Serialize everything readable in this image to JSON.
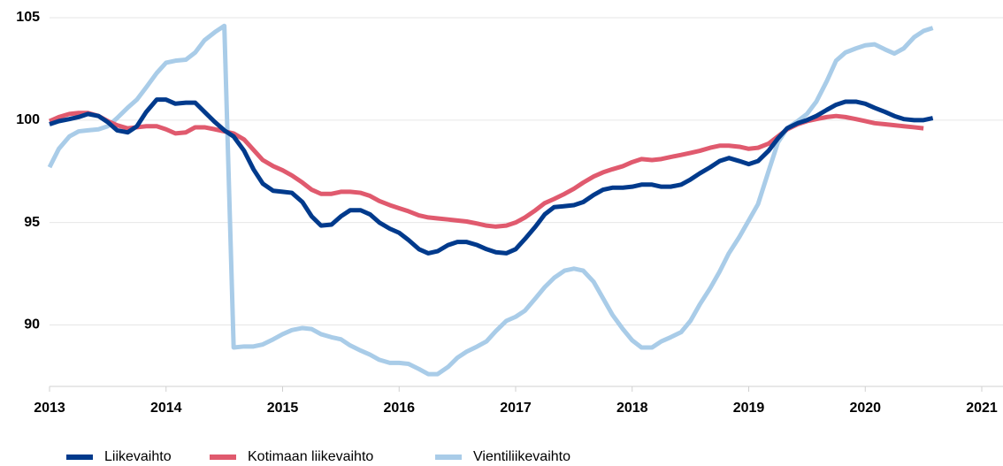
{
  "chart_data": {
    "type": "line",
    "x": [
      2013,
      2013.08,
      2013.17,
      2013.25,
      2013.33,
      2013.42,
      2013.5,
      2013.58,
      2013.67,
      2013.75,
      2013.83,
      2013.92,
      2014,
      2014.08,
      2014.17,
      2014.25,
      2014.33,
      2014.42,
      2014.5,
      2014.58,
      2014.67,
      2014.75,
      2014.83,
      2014.92,
      2015,
      2015.08,
      2015.17,
      2015.25,
      2015.33,
      2015.42,
      2015.5,
      2015.58,
      2015.67,
      2015.75,
      2015.83,
      2015.92,
      2016,
      2016.08,
      2016.17,
      2016.25,
      2016.33,
      2016.42,
      2016.5,
      2016.58,
      2016.67,
      2016.75,
      2016.83,
      2016.92,
      2017,
      2017.08,
      2017.17,
      2017.25,
      2017.33,
      2017.42,
      2017.5,
      2017.58,
      2017.67,
      2017.75,
      2017.83,
      2017.92,
      2018,
      2018.08,
      2018.17,
      2018.25,
      2018.33,
      2018.42,
      2018.5,
      2018.58,
      2018.67,
      2018.75,
      2018.83,
      2018.92,
      2019,
      2019.08,
      2019.17,
      2019.25,
      2019.33,
      2019.42,
      2019.5,
      2019.58,
      2019.67,
      2019.75,
      2019.83,
      2019.92,
      2020,
      2020.08,
      2020.17,
      2020.25,
      2020.33,
      2020.42,
      2020.5,
      2020.58
    ],
    "series": [
      {
        "name": "Liikevaihto",
        "color": "#003a8c",
        "values": [
          99.8,
          99.95,
          100.05,
          100.15,
          100.3,
          100.2,
          99.9,
          99.5,
          99.4,
          99.7,
          100.4,
          101.0,
          101.0,
          100.8,
          100.85,
          100.85,
          100.4,
          99.9,
          99.5,
          99.2,
          98.5,
          97.6,
          96.9,
          96.55,
          96.5,
          96.45,
          96.0,
          95.3,
          94.85,
          94.9,
          95.3,
          95.6,
          95.6,
          95.4,
          95.0,
          94.7,
          94.5,
          94.15,
          93.7,
          93.5,
          93.6,
          93.9,
          94.05,
          94.05,
          93.9,
          93.7,
          93.55,
          93.5,
          93.7,
          94.2,
          94.8,
          95.4,
          95.75,
          95.8,
          95.85,
          96.0,
          96.35,
          96.6,
          96.7,
          96.7,
          96.75,
          96.85,
          96.85,
          96.75,
          96.75,
          96.85,
          97.1,
          97.4,
          97.7,
          98.0,
          98.15,
          98.0,
          97.85,
          98.0,
          98.5,
          99.1,
          99.6,
          99.85,
          100.0,
          100.2,
          100.5,
          100.75,
          100.9,
          100.9,
          100.8,
          100.6,
          100.4,
          100.2,
          100.05,
          100.0,
          100.0,
          100.1
        ]
      },
      {
        "name": "Kotimaan liikevaihto",
        "color": "#e05a6e",
        "values": [
          99.95,
          100.15,
          100.3,
          100.35,
          100.35,
          100.2,
          99.95,
          99.75,
          99.6,
          99.65,
          99.7,
          99.7,
          99.55,
          99.35,
          99.4,
          99.65,
          99.65,
          99.55,
          99.45,
          99.35,
          99.05,
          98.55,
          98.05,
          97.75,
          97.55,
          97.3,
          96.95,
          96.6,
          96.4,
          96.4,
          96.5,
          96.5,
          96.45,
          96.3,
          96.05,
          95.85,
          95.7,
          95.55,
          95.35,
          95.25,
          95.2,
          95.15,
          95.1,
          95.05,
          94.95,
          94.85,
          94.8,
          94.85,
          95.0,
          95.25,
          95.6,
          95.95,
          96.15,
          96.4,
          96.65,
          96.95,
          97.25,
          97.45,
          97.6,
          97.75,
          97.95,
          98.1,
          98.05,
          98.1,
          98.2,
          98.3,
          98.4,
          98.5,
          98.65,
          98.75,
          98.75,
          98.7,
          98.6,
          98.65,
          98.85,
          99.2,
          99.55,
          99.8,
          99.95,
          100.05,
          100.15,
          100.2,
          100.15,
          100.05,
          99.95,
          99.85,
          99.8,
          99.75,
          99.7,
          99.65,
          99.6,
          null
        ]
      },
      {
        "name": "Vientiliikevaihto",
        "color": "#a9cce8",
        "values": [
          97.7,
          98.6,
          99.2,
          99.45,
          99.5,
          99.55,
          99.7,
          100.1,
          100.6,
          101.0,
          101.6,
          102.3,
          102.8,
          102.9,
          102.95,
          103.3,
          103.9,
          104.3,
          104.6,
          88.9,
          88.95,
          88.95,
          89.05,
          89.3,
          89.55,
          89.75,
          89.85,
          89.8,
          89.55,
          89.4,
          89.3,
          89.0,
          88.75,
          88.55,
          88.3,
          88.15,
          88.15,
          88.1,
          87.85,
          87.6,
          87.6,
          87.95,
          88.4,
          88.7,
          88.95,
          89.2,
          89.7,
          90.2,
          90.4,
          90.7,
          91.3,
          91.85,
          92.3,
          92.65,
          92.75,
          92.65,
          92.1,
          91.3,
          90.5,
          89.8,
          89.25,
          88.9,
          88.9,
          89.2,
          89.4,
          89.65,
          90.2,
          91.0,
          91.8,
          92.6,
          93.5,
          94.3,
          95.1,
          95.9,
          97.5,
          98.9,
          99.6,
          99.95,
          100.3,
          100.9,
          101.9,
          102.9,
          103.3,
          103.5,
          103.65,
          103.7,
          103.45,
          103.25,
          103.5,
          104.05,
          104.35,
          104.5
        ]
      }
    ],
    "xlim": [
      2013,
      2021
    ],
    "xticks": [
      2013,
      2014,
      2015,
      2016,
      2017,
      2018,
      2019,
      2020,
      2021
    ],
    "ylim": [
      87,
      105
    ],
    "yticks": [
      90,
      95,
      100,
      105
    ],
    "grid": true
  }
}
